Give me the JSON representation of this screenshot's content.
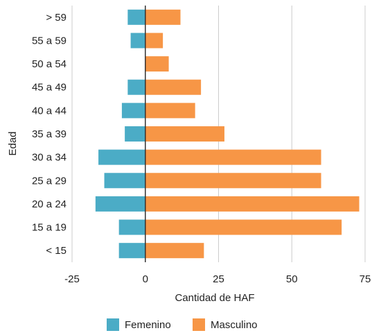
{
  "chart_data": {
    "type": "bar",
    "orientation": "horizontal",
    "xlabel": "Cantidad de HAF",
    "ylabel": "Edad",
    "xlim": [
      -25,
      75
    ],
    "xticks": [
      -25,
      0,
      25,
      50,
      75
    ],
    "categories": [
      "> 59",
      "55 a 59",
      "50 a 54",
      "45 a 49",
      "40 a 44",
      "35 a 39",
      "30 a 34",
      "25 a 29",
      "20 a 24",
      "15 a 19",
      "< 15"
    ],
    "series": [
      {
        "name": "Femenino",
        "color": "#4bacc6",
        "values": [
          -6,
          -5,
          0,
          -6,
          -8,
          -7,
          -16,
          -14,
          -17,
          -9,
          -9
        ]
      },
      {
        "name": "Masculino",
        "color": "#f79646",
        "values": [
          12,
          6,
          8,
          19,
          17,
          27,
          60,
          60,
          73,
          67,
          20
        ]
      }
    ],
    "grid": true,
    "legend_position": "bottom"
  }
}
